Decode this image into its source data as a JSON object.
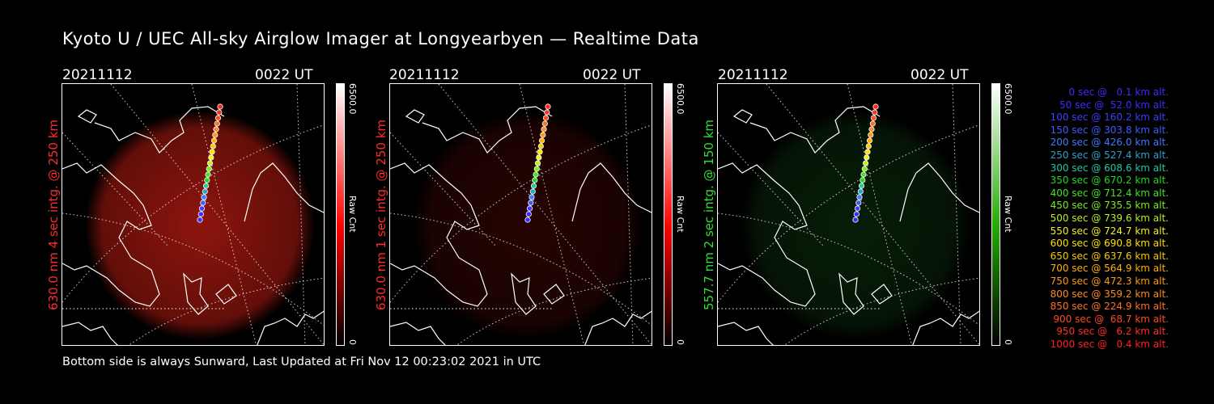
{
  "title": "Kyoto U / UEC All-sky Airglow Imager at Longyearbyen — Realtime Data",
  "footer": "Bottom side is always Sunward, Last Updated at Fri Nov 12 00:23:02 2021 in UTC",
  "panels": [
    {
      "date": "20211112",
      "time": "0022 UT",
      "ylabel": "630.0 nm 4 sec intg. @ 250 km",
      "label_color": "#ff2a2a",
      "cbar_max": "6500.0",
      "cbar_unit": "Raw Cnt",
      "cbar_min": "0",
      "cbar_color": "#ff0000",
      "glow_color": "#b01a10",
      "glow_level": 0.8
    },
    {
      "date": "20211112",
      "time": "0022 UT",
      "ylabel": "630.0 nm 1 sec intg. @ 250 km",
      "label_color": "#ff2a2a",
      "cbar_max": "6500.0",
      "cbar_unit": "Raw Cnt",
      "cbar_min": "0",
      "cbar_color": "#ff0000",
      "glow_color": "#6a0c06",
      "glow_level": 0.35
    },
    {
      "date": "20211112",
      "time": "0022 UT",
      "ylabel": "557.7 nm 2 sec intg. @ 150 km",
      "label_color": "#33dd33",
      "cbar_max": "6500.0",
      "cbar_unit": "Raw Cnt",
      "cbar_min": "0",
      "cbar_color": "#22aa00",
      "glow_color": "#0f3a0f",
      "glow_level": 0.5
    }
  ],
  "legend": [
    {
      "text": "0 sec @   0.1 km alt.",
      "color": "#3d2bff"
    },
    {
      "text": "50 sec @  52.0 km alt.",
      "color": "#3d2bff"
    },
    {
      "text": "100 sec @ 160.2 km alt.",
      "color": "#3d3dff"
    },
    {
      "text": "150 sec @ 303.8 km alt.",
      "color": "#3d5aff"
    },
    {
      "text": "200 sec @ 426.0 km alt.",
      "color": "#3f7aff"
    },
    {
      "text": "250 sec @ 527.4 km alt.",
      "color": "#2fa0c8"
    },
    {
      "text": "300 sec @ 608.6 km alt.",
      "color": "#22c8a0"
    },
    {
      "text": "350 sec @ 670.2 km alt.",
      "color": "#22d822"
    },
    {
      "text": "400 sec @ 712.4 km alt.",
      "color": "#44e222"
    },
    {
      "text": "450 sec @ 735.5 km alt.",
      "color": "#7aea22"
    },
    {
      "text": "500 sec @ 739.6 km alt.",
      "color": "#b8f022"
    },
    {
      "text": "550 sec @ 724.7 km alt.",
      "color": "#f0f022"
    },
    {
      "text": "600 sec @ 690.8 km alt.",
      "color": "#ffe000"
    },
    {
      "text": "650 sec @ 637.6 km alt.",
      "color": "#ffc800"
    },
    {
      "text": "700 sec @ 564.9 km alt.",
      "color": "#ffb000"
    },
    {
      "text": "750 sec @ 472.3 km alt.",
      "color": "#ff9a10"
    },
    {
      "text": "800 sec @ 359.2 km alt.",
      "color": "#ff8a20"
    },
    {
      "text": "850 sec @ 224.9 km alt.",
      "color": "#ff7020"
    },
    {
      "text": "900 sec @  68.7 km alt.",
      "color": "#ff4a20"
    },
    {
      "text": "950 sec @   6.2 km alt.",
      "color": "#ff3020"
    },
    {
      "text": "1000 sec @   0.4 km alt.",
      "color": "#ff2020"
    }
  ]
}
